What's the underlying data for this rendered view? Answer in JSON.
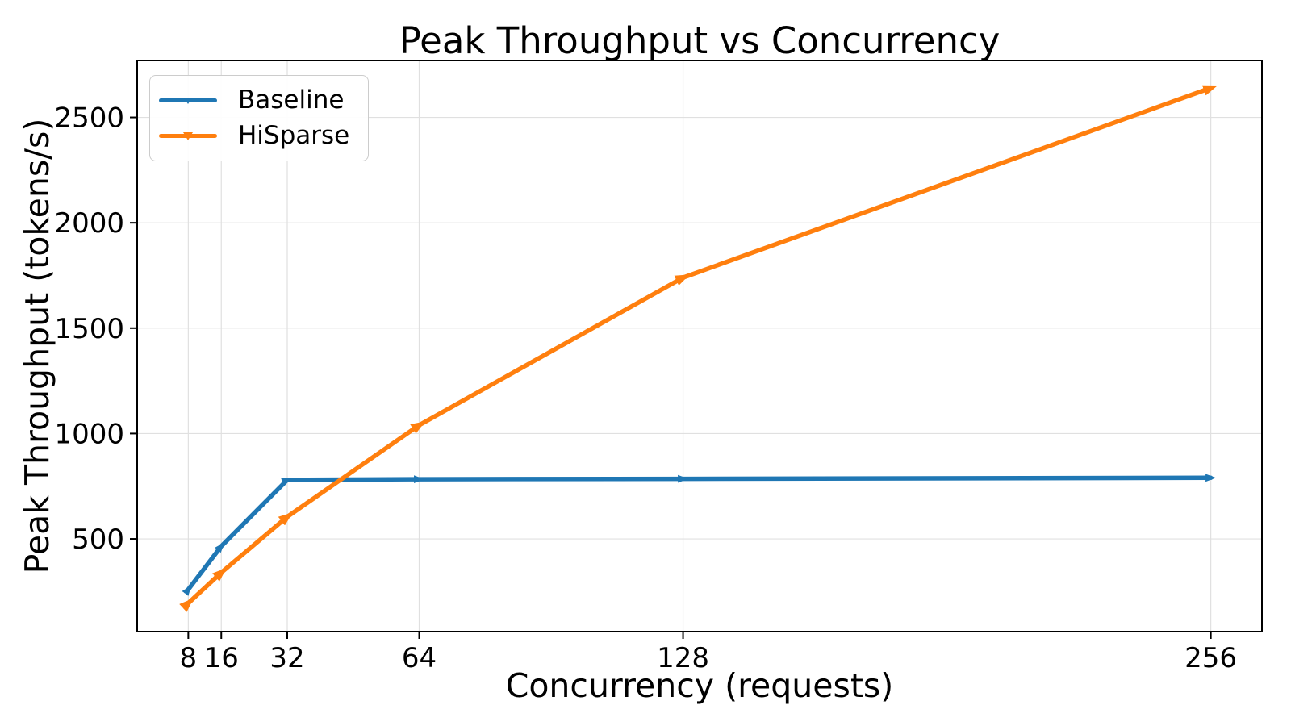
{
  "chart_data": {
    "type": "line",
    "title": "Peak Throughput vs Concurrency",
    "xlabel": "Concurrency (requests)",
    "ylabel": "Peak Throughput (tokens/s)",
    "x": [
      8,
      16,
      32,
      64,
      128,
      256
    ],
    "series": [
      {
        "name": "Baseline",
        "color": "#1f77b4",
        "values": [
          260,
          465,
          780,
          783,
          785,
          790
        ]
      },
      {
        "name": "HiSparse",
        "color": "#ff7f0e",
        "values": [
          195,
          340,
          605,
          1040,
          1740,
          2640
        ]
      }
    ],
    "xticks": [
      8,
      16,
      32,
      64,
      128,
      256
    ],
    "yticks": [
      500,
      1000,
      1500,
      2000,
      2500
    ],
    "xlim": [
      -4.4,
      268.4
    ],
    "ylim": [
      60,
      2770
    ],
    "x_scale": "linear",
    "grid": true,
    "grid_color": "#e0e0e0",
    "axis_color": "#000000",
    "background": "#ffffff",
    "legend_position": "upper left",
    "line_width": 5.5,
    "marker_style": "directional-arrow"
  }
}
